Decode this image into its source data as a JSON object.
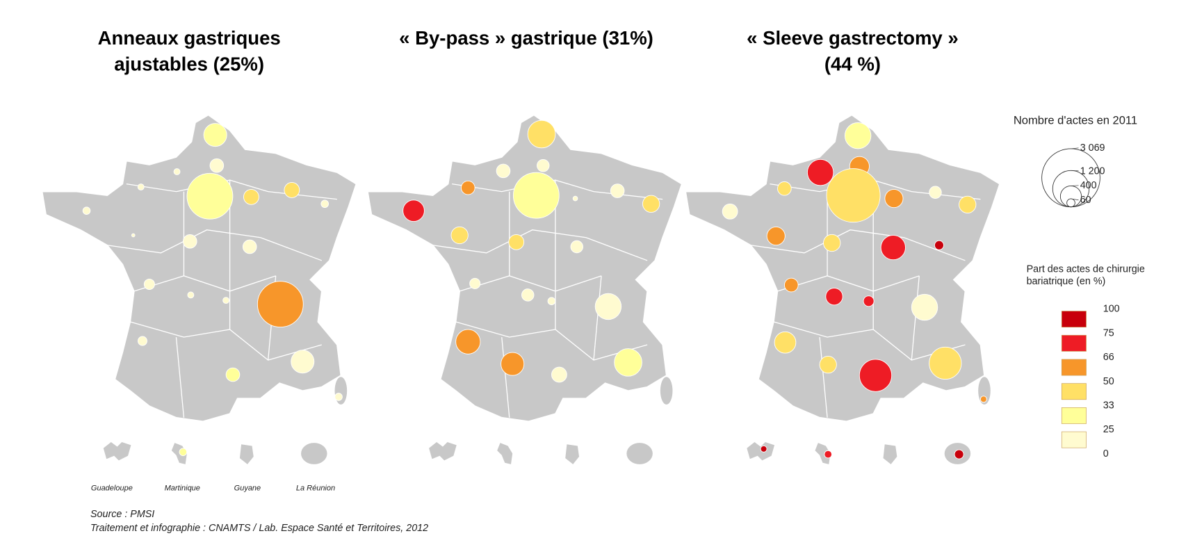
{
  "maps": [
    {
      "title_lines": [
        "Anneaux gastriques",
        "ajustables (25%)"
      ],
      "circles": [
        {
          "actes": 480,
          "part": 30
        },
        {
          "actes": 170,
          "part": 12
        },
        {
          "actes": 35,
          "part": 12
        },
        {
          "actes": 35,
          "part": 12
        },
        {
          "actes": 1900,
          "part": 30
        },
        {
          "actes": 210,
          "part": 40
        },
        {
          "actes": 210,
          "part": 40
        },
        {
          "actes": 50,
          "part": 12
        },
        {
          "actes": 50,
          "part": 12
        },
        {
          "actes": 170,
          "part": 12
        },
        {
          "actes": 170,
          "part": 12
        },
        {
          "actes": 10,
          "part": 12
        },
        {
          "actes": 100,
          "part": 12
        },
        {
          "actes": 35,
          "part": 12
        },
        {
          "actes": 35,
          "part": 12
        },
        {
          "actes": 1900,
          "part": 58
        },
        {
          "actes": 75,
          "part": 12
        },
        {
          "actes": 480,
          "part": 12
        },
        {
          "actes": 170,
          "part": 30
        },
        {
          "actes": 50,
          "part": 12
        },
        {
          "actes": 50,
          "part": 30
        }
      ]
    },
    {
      "title_lines": [
        "« By-pass » gastrique (31%)"
      ],
      "circles": [
        {
          "actes": 690,
          "part": 40
        },
        {
          "actes": 135,
          "part": 12
        },
        {
          "actes": 170,
          "part": 12
        },
        {
          "actes": 170,
          "part": 58
        },
        {
          "actes": 1900,
          "part": 30
        },
        {
          "actes": 20,
          "part": 12
        },
        {
          "actes": 170,
          "part": 12
        },
        {
          "actes": 260,
          "part": 40
        },
        {
          "actes": 415,
          "part": 70
        },
        {
          "actes": 260,
          "part": 40
        },
        {
          "actes": 210,
          "part": 40
        },
        {
          "actes": 135,
          "part": 12
        },
        {
          "actes": 100,
          "part": 12
        },
        {
          "actes": 135,
          "part": 12
        },
        {
          "actes": 50,
          "part": 12
        },
        {
          "actes": 615,
          "part": 12
        },
        {
          "actes": 545,
          "part": 58
        },
        {
          "actes": 480,
          "part": 58
        },
        {
          "actes": 690,
          "part": 30
        },
        {
          "actes": 210,
          "part": 12
        }
      ]
    },
    {
      "title_lines": [
        "« Sleeve gastrectomy »",
        "(44 %)"
      ],
      "circles": [
        {
          "actes": 615,
          "part": 30
        },
        {
          "actes": 350,
          "part": 58
        },
        {
          "actes": 615,
          "part": 70
        },
        {
          "actes": 170,
          "part": 40
        },
        {
          "actes": 2600,
          "part": 40
        },
        {
          "actes": 300,
          "part": 58
        },
        {
          "actes": 135,
          "part": 12
        },
        {
          "actes": 260,
          "part": 40
        },
        {
          "actes": 210,
          "part": 12
        },
        {
          "actes": 300,
          "part": 58
        },
        {
          "actes": 260,
          "part": 40
        },
        {
          "actes": 545,
          "part": 70
        },
        {
          "actes": 75,
          "part": 85
        },
        {
          "actes": 170,
          "part": 58
        },
        {
          "actes": 260,
          "part": 70
        },
        {
          "actes": 100,
          "part": 70
        },
        {
          "actes": 615,
          "part": 12
        },
        {
          "actes": 415,
          "part": 40
        },
        {
          "actes": 260,
          "part": 40
        },
        {
          "actes": 940,
          "part": 70
        },
        {
          "actes": 940,
          "part": 40
        },
        {
          "actes": 35,
          "part": 58
        },
        {
          "actes": 35,
          "part": 85
        },
        {
          "actes": 50,
          "part": 70
        },
        {
          "actes": 75,
          "part": 85
        }
      ]
    }
  ],
  "legend_size": {
    "title": "Nombre d'actes en 2011",
    "values": [
      {
        "value": 3069,
        "label": "3 069"
      },
      {
        "value": 1200,
        "label": "1 200"
      },
      400,
      60
    ]
  },
  "legend_color": {
    "title_lines": [
      "Part des actes de chirurgie",
      "bariatrique (en %)"
    ],
    "thresholds": [
      100,
      75,
      66,
      50,
      33,
      25,
      0
    ],
    "colors": [
      "#c8000b",
      "#ee1c25",
      "#f7962a",
      "#ffe066",
      "#ffff99",
      "#fffbd0"
    ]
  },
  "overseas": [
    "Guadeloupe",
    "Martinique",
    "Guyane",
    "La Réunion"
  ],
  "source": [
    "Source : PMSI",
    "Traitement et infographie : CNAMTS / Lab. Espace Santé et Territoires, 2012"
  ]
}
